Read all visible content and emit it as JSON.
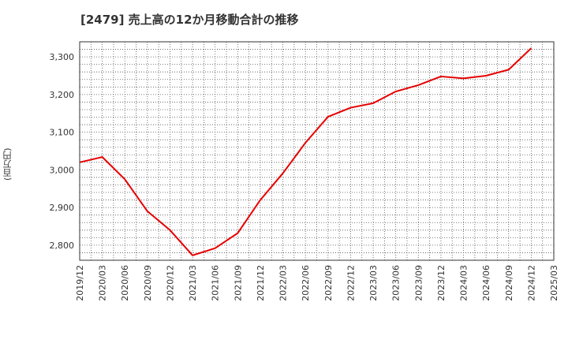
{
  "chart_data": {
    "type": "line",
    "title": "[2479]  売上高の12か月移動合計の推移",
    "ylabel": "(百万円)",
    "xlabel": "",
    "ylim": [
      2760,
      3340
    ],
    "yticks": [
      2800,
      2900,
      3000,
      3100,
      3200,
      3300
    ],
    "ytick_labels": [
      "2,800",
      "2,900",
      "3,000",
      "3,100",
      "3,200",
      "3,300"
    ],
    "xtick_labels": [
      "2019/12",
      "2020/03",
      "2020/06",
      "2020/09",
      "2020/12",
      "2021/03",
      "2021/06",
      "2021/09",
      "2021/12",
      "2022/03",
      "2022/06",
      "2022/09",
      "2022/12",
      "2023/03",
      "2023/06",
      "2023/09",
      "2023/12",
      "2024/03",
      "2024/06",
      "2024/09",
      "2024/12",
      "2025/03"
    ],
    "grid": true,
    "series": [
      {
        "name": "売上高",
        "color": "#e60000",
        "x": [
          "2019/12",
          "2020/03",
          "2020/06",
          "2020/09",
          "2020/12",
          "2021/03",
          "2021/06",
          "2021/09",
          "2021/12",
          "2022/03",
          "2022/06",
          "2022/09",
          "2022/12",
          "2023/03",
          "2023/06",
          "2023/09",
          "2023/12",
          "2024/03",
          "2024/06",
          "2024/09",
          "2024/12"
        ],
        "values": [
          3020,
          3034,
          2975,
          2890,
          2840,
          2773,
          2792,
          2832,
          2920,
          2991,
          3072,
          3141,
          3165,
          3177,
          3208,
          3225,
          3248,
          3243,
          3250,
          3266,
          3323
        ]
      }
    ]
  }
}
